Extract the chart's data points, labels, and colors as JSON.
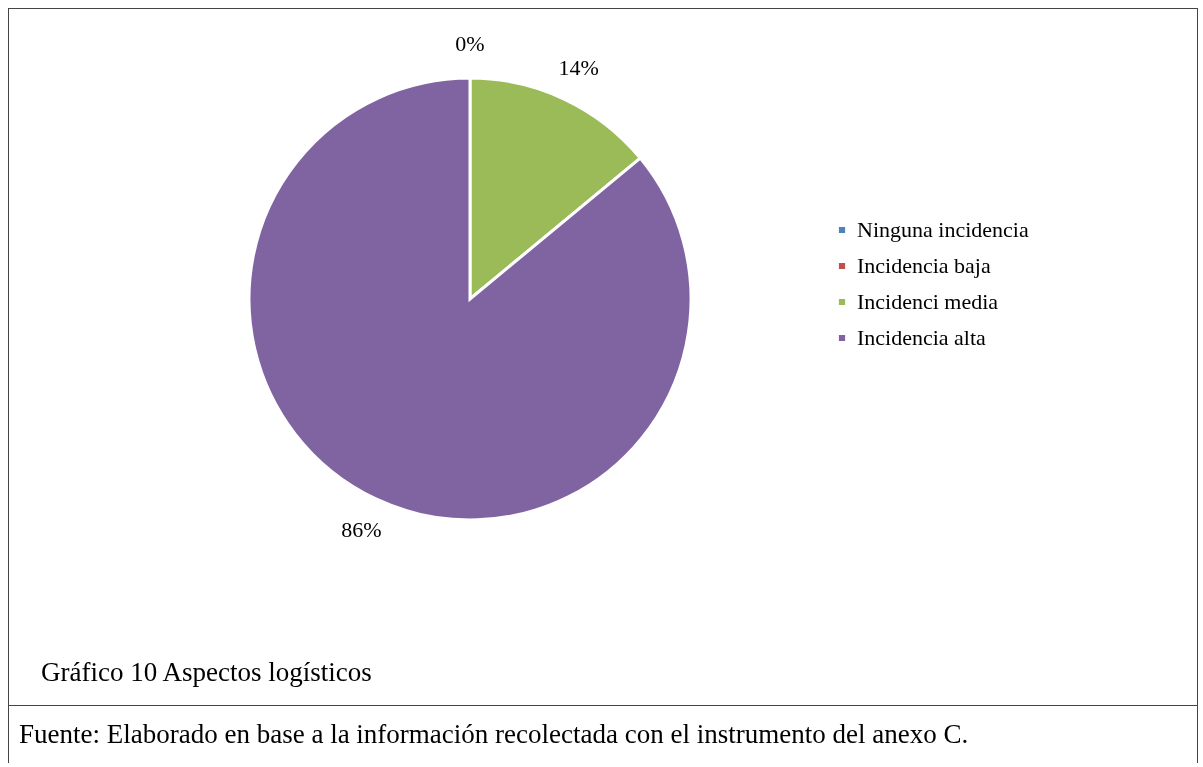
{
  "chart_data": {
    "type": "pie",
    "categories": [
      "Ninguna incidencia",
      "Incidencia baja",
      "Incidenci media",
      "Incidencia alta"
    ],
    "values": [
      0,
      0,
      14,
      86
    ],
    "colors": [
      "#4f81bd",
      "#c0504d",
      "#9bbb59",
      "#8064a2"
    ],
    "value_labels": [
      "0%",
      null,
      "14%",
      "86%"
    ],
    "legend": "right",
    "annotations": [
      "Gráfico 10 Aspectos logísticos",
      "Fuente: Elaborado en base a la información recolectada con el instrumento del anexo C."
    ]
  }
}
